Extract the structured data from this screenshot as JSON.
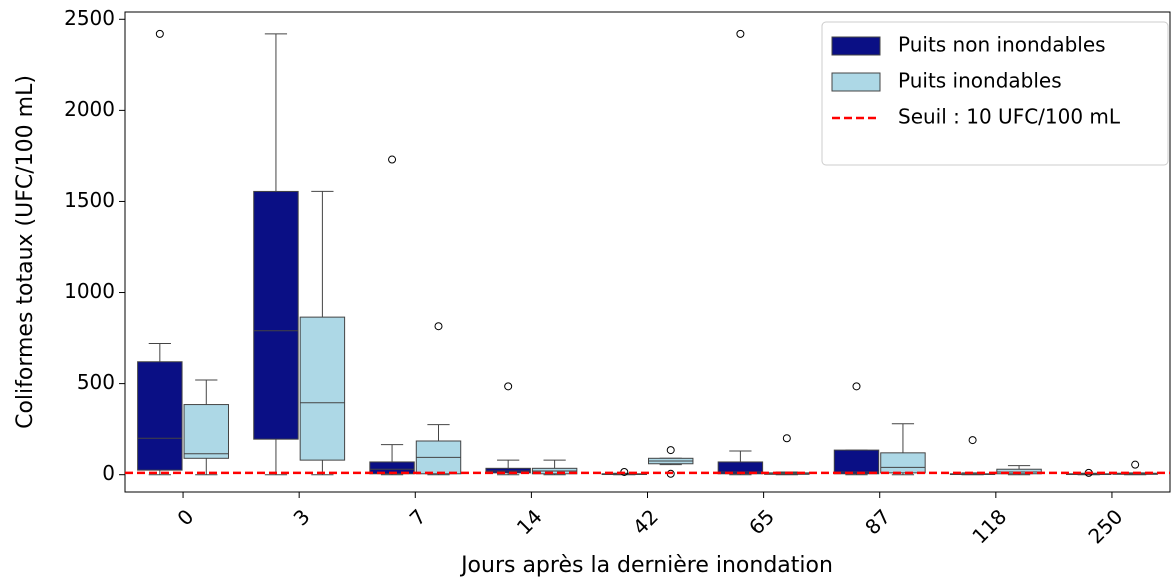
{
  "chart_data": {
    "type": "box",
    "x_label": "Jours après la dernière inondation",
    "y_label": "Coliformes totaux (UFC/100 mL)",
    "categories": [
      "0",
      "3",
      "7",
      "14",
      "42",
      "65",
      "87",
      "118",
      "250"
    ],
    "ylim": [
      -95,
      2540
    ],
    "yticks": [
      0,
      500,
      1000,
      1500,
      2000,
      2500
    ],
    "legend": "upper right",
    "series": [
      {
        "name": "Puits non inondables",
        "color": "#0a0f85",
        "min": [
          0,
          0,
          0,
          0,
          0,
          0,
          0,
          0,
          0
        ],
        "q1": [
          25,
          195,
          5,
          10,
          1,
          5,
          5,
          1,
          1
        ],
        "median": [
          200,
          790,
          30,
          20,
          3,
          15,
          15,
          3,
          3
        ],
        "q3": [
          620,
          1555,
          70,
          35,
          5,
          70,
          135,
          5,
          5
        ],
        "max": [
          720,
          2420,
          165,
          80,
          8,
          130,
          135,
          10,
          8
        ],
        "outliers": [
          [
            2420
          ],
          [],
          [
            1730
          ],
          [
            485
          ],
          [
            15
          ],
          [
            2420
          ],
          [
            485
          ],
          [
            190
          ],
          [
            10
          ]
        ]
      },
      {
        "name": "Puits inondables",
        "color": "#add8e6",
        "min": [
          0,
          0,
          0,
          0,
          55,
          0,
          0,
          0,
          0
        ],
        "q1": [
          90,
          80,
          5,
          5,
          60,
          2,
          10,
          5,
          2
        ],
        "median": [
          115,
          395,
          95,
          20,
          75,
          5,
          40,
          15,
          5
        ],
        "q3": [
          385,
          865,
          185,
          35,
          90,
          10,
          120,
          30,
          8
        ],
        "max": [
          520,
          1555,
          275,
          80,
          90,
          15,
          280,
          50,
          10
        ],
        "outliers": [
          [],
          [],
          [
            815
          ],
          [],
          [
            135,
            5
          ],
          [
            200
          ],
          [],
          [],
          [
            55
          ]
        ]
      }
    ],
    "threshold": {
      "name": "Seuil : 10 UFC/100 mL",
      "value": 10,
      "color": "#ff0000"
    }
  }
}
